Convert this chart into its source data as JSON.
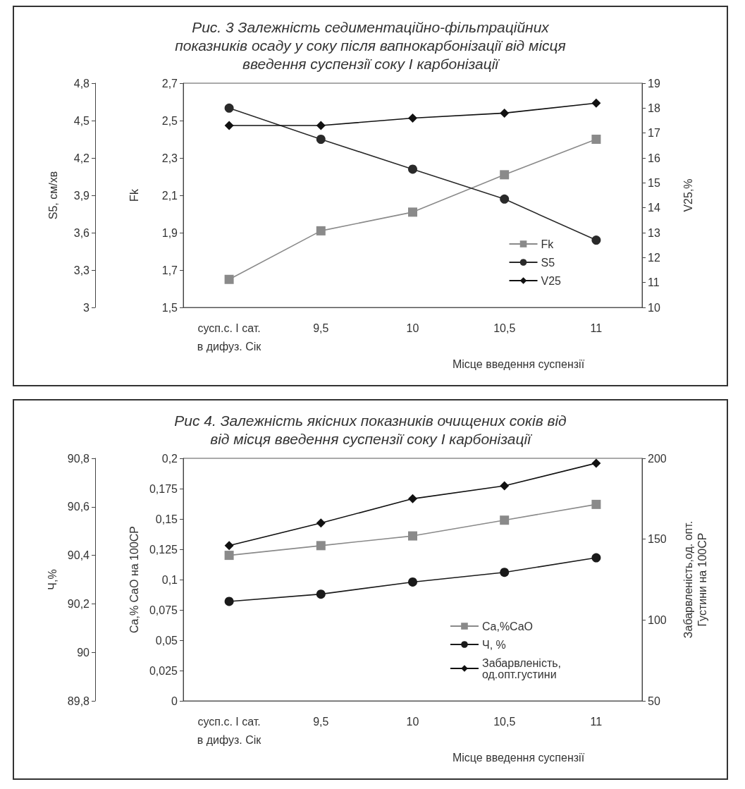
{
  "chart_data": [
    {
      "type": "line",
      "title": "Рис. 3 Залежність седиментаційно-фільтраційних\nпоказників осаду у соку після вапнокарбонізації від місця\nвведення суспензії соку І карбонізації",
      "xlabel": "Місце введення суспензії",
      "ylabel": "Fk",
      "y2label": "V25,%",
      "y3label": "S5, см/хв",
      "categories": [
        "сусп.с. І сат.\nв дифуз. Сік",
        "9,5",
        "10",
        "10,5",
        "11"
      ],
      "series": [
        {
          "name": "Fk",
          "color": "#8a8a8a",
          "marker": "square",
          "values": [
            1.65,
            1.91,
            2.01,
            2.21,
            2.4
          ]
        },
        {
          "name": "S5",
          "color": "#2a2a2a",
          "marker": "circle",
          "axis": "y3",
          "values": [
            4.6,
            4.35,
            4.11,
            3.87,
            3.54
          ]
        },
        {
          "name": "V25",
          "color": "#111111",
          "marker": "diamond",
          "axis": "y2",
          "values": [
            17.3,
            17.3,
            17.6,
            17.8,
            18.2
          ]
        }
      ],
      "ylim": [
        1.5,
        2.7
      ],
      "yticks": [
        {
          "value": 1.5,
          "label": "1,5"
        },
        {
          "value": 1.7,
          "label": "1,7"
        },
        {
          "value": 1.9,
          "label": "1,9"
        },
        {
          "value": 2.1,
          "label": "2,1"
        },
        {
          "value": 2.3,
          "label": "2,3"
        },
        {
          "value": 2.5,
          "label": "2,5"
        },
        {
          "value": 2.7,
          "label": "2,7"
        }
      ],
      "y2lim": [
        10,
        19
      ],
      "y2ticks": [
        10,
        11,
        12,
        13,
        14,
        15,
        16,
        17,
        18,
        19
      ],
      "y3lim": [
        3,
        4.8
      ],
      "y3ticks": [
        3,
        {
          "value": 3.3,
          "label": "3,3"
        },
        {
          "value": 3.6,
          "label": "3,6"
        },
        {
          "value": 3.9,
          "label": "3,9"
        },
        {
          "value": 4.2,
          "label": "4,2"
        },
        {
          "value": 4.5,
          "label": "4,5"
        },
        {
          "value": 4.8,
          "label": "4,8"
        }
      ],
      "legend": "bottom right",
      "grid": false
    },
    {
      "type": "line",
      "title": "Рис 4. Залежність якісних показників очищених соків від\nвід місця введення суспензії соку І карбонізації",
      "xlabel": "Місце введення суспензії",
      "ylabel": "Ca,% CaO на 100СР",
      "y2label": "Забарвленість,од. опт.\nГустини на 100СР",
      "y3label": "Ч,%",
      "categories": [
        "сусп.с. І сат.\nв дифуз. Сік",
        "9,5",
        "10",
        "10,5",
        "11"
      ],
      "series": [
        {
          "name": "Ca,%CaO",
          "color": "#8a8a8a",
          "marker": "square",
          "values": [
            0.12,
            0.128,
            0.136,
            0.149,
            0.162
          ]
        },
        {
          "name": "Ч, %",
          "color": "#1a1a1a",
          "marker": "circle",
          "axis": "y3",
          "values": [
            90.21,
            90.24,
            90.29,
            90.33,
            90.39
          ]
        },
        {
          "name": "Забарвленість,\nод.опт.густини",
          "color": "#111111",
          "marker": "diamond",
          "axis": "y2",
          "values": [
            146,
            160,
            175,
            183,
            197
          ]
        }
      ],
      "ylim": [
        0,
        0.2
      ],
      "yticks": [
        0,
        {
          "value": 0.025,
          "label": "0,025"
        },
        {
          "value": 0.05,
          "label": "0,05"
        },
        {
          "value": 0.075,
          "label": "0,075"
        },
        {
          "value": 0.1,
          "label": "0,1"
        },
        {
          "value": 0.125,
          "label": "0,125"
        },
        {
          "value": 0.15,
          "label": "0,15"
        },
        {
          "value": 0.175,
          "label": "0,175"
        },
        {
          "value": 0.2,
          "label": "0,2"
        }
      ],
      "y2lim": [
        50,
        200
      ],
      "y2ticks": [
        50,
        100,
        150,
        200
      ],
      "y3lim": [
        89.8,
        90.8
      ],
      "y3ticks": [
        {
          "value": 89.8,
          "label": "89,8"
        },
        90,
        {
          "value": 90.2,
          "label": "90,2"
        },
        {
          "value": 90.4,
          "label": "90,4"
        },
        {
          "value": 90.6,
          "label": "90,6"
        },
        {
          "value": 90.8,
          "label": "90,8"
        }
      ],
      "legend": "bottom right",
      "grid": false
    }
  ]
}
